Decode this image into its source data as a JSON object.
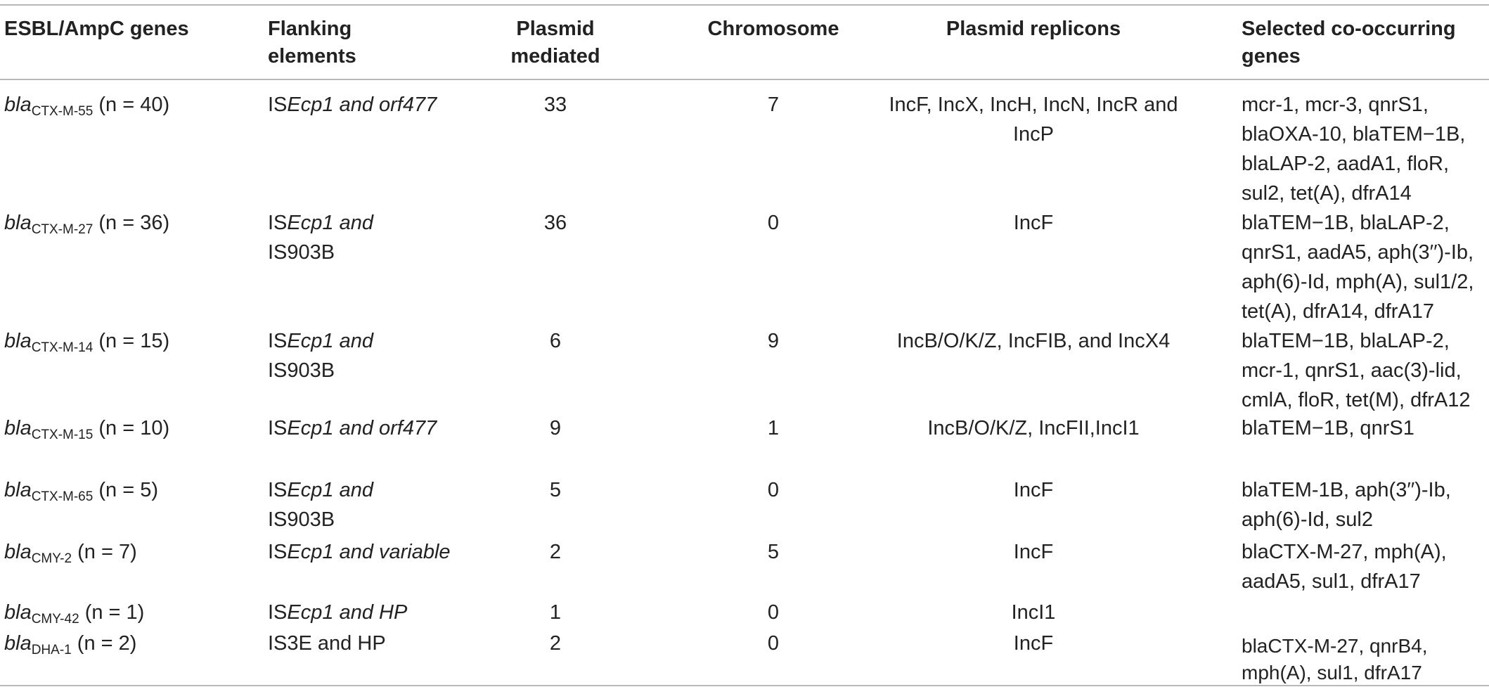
{
  "headers": {
    "col1": "ESBL/AmpC genes",
    "col2": "Flanking elements",
    "col3": "Plasmid mediated",
    "col4": "Chromosome",
    "col5": "Plasmid replicons",
    "col6": "Selected co-occurring genes"
  },
  "rows": [
    {
      "gene_base": "bla",
      "gene_sub": "CTX-M-55",
      "gene_n": "(n = 40)",
      "flank_is": "IS",
      "flank_ital": "Ecp1 and orf477",
      "flank_rest": "",
      "plasmid": "33",
      "chromosome": "7",
      "replicons": "IncF, IncX, IncH, IncN, IncR and IncP",
      "cooccur": "mcr-1, mcr-3, qnrS1, blaOXA-10, blaTEM−1B, blaLAP-2, aadA1, floR, sul2, tet(A), dfrA14"
    },
    {
      "gene_base": "bla",
      "gene_sub": "CTX-M-27",
      "gene_n": "(n = 36)",
      "flank_is": "IS",
      "flank_ital": "Ecp1 and",
      "flank_rest": "IS903B",
      "plasmid": "36",
      "chromosome": "0",
      "replicons": "IncF",
      "cooccur": "blaTEM−1B, blaLAP-2, qnrS1, aadA5, aph(3′′)-Ib, aph(6)-Id, mph(A), sul1/2, tet(A), dfrA14, dfrA17"
    },
    {
      "gene_base": "bla",
      "gene_sub": "CTX-M-14",
      "gene_n": "(n = 15)",
      "flank_is": "IS",
      "flank_ital": "Ecp1 and",
      "flank_rest": "IS903B",
      "plasmid": "6",
      "chromosome": "9",
      "replicons": "IncB/O/K/Z, IncFIB, and IncX4",
      "cooccur": "blaTEM−1B, blaLAP-2, mcr-1, qnrS1, aac(3)-lid, cmlA, floR, tet(M), dfrA12"
    },
    {
      "gene_base": "bla",
      "gene_sub": "CTX-M-15",
      "gene_n": "(n = 10)",
      "flank_is": "IS",
      "flank_ital": "Ecp1 and orf477",
      "flank_rest": "",
      "plasmid": "9",
      "chromosome": "1",
      "replicons": "IncB/O/K/Z, IncFII,IncI1",
      "cooccur": "blaTEM−1B, qnrS1"
    },
    {
      "gene_base": "bla",
      "gene_sub": "CTX-M-65",
      "gene_n": "(n = 5)",
      "flank_is": "IS",
      "flank_ital": "Ecp1 and",
      "flank_rest": "IS903B",
      "plasmid": "5",
      "chromosome": "0",
      "replicons": "IncF",
      "cooccur": "blaTEM-1B, aph(3′′)-Ib, aph(6)-Id, sul2"
    },
    {
      "gene_base": "bla",
      "gene_sub": "CMY-2",
      "gene_n": "(n = 7)",
      "flank_is": "IS",
      "flank_ital": "Ecp1 and variable",
      "flank_rest": "",
      "plasmid": "2",
      "chromosome": "5",
      "replicons": "IncF",
      "cooccur": "blaCTX-M-27, mph(A), aadA5, sul1, dfrA17"
    },
    {
      "gene_base": "bla",
      "gene_sub": "CMY-42",
      "gene_n": "(n = 1)",
      "flank_is": "IS",
      "flank_ital": "Ecp1 and HP",
      "flank_rest": "",
      "plasmid": "1",
      "chromosome": "0",
      "replicons": "IncI1",
      "cooccur": ""
    },
    {
      "gene_base": "bla",
      "gene_sub": "DHA-1",
      "gene_n": "(n = 2)",
      "flank_is": "",
      "flank_ital": "",
      "flank_rest": "IS3E and HP",
      "plasmid": "2",
      "chromosome": "0",
      "replicons": "IncF",
      "cooccur": "blaCTX-M-27, qnrB4, mph(A), sul1, dfrA17"
    }
  ]
}
